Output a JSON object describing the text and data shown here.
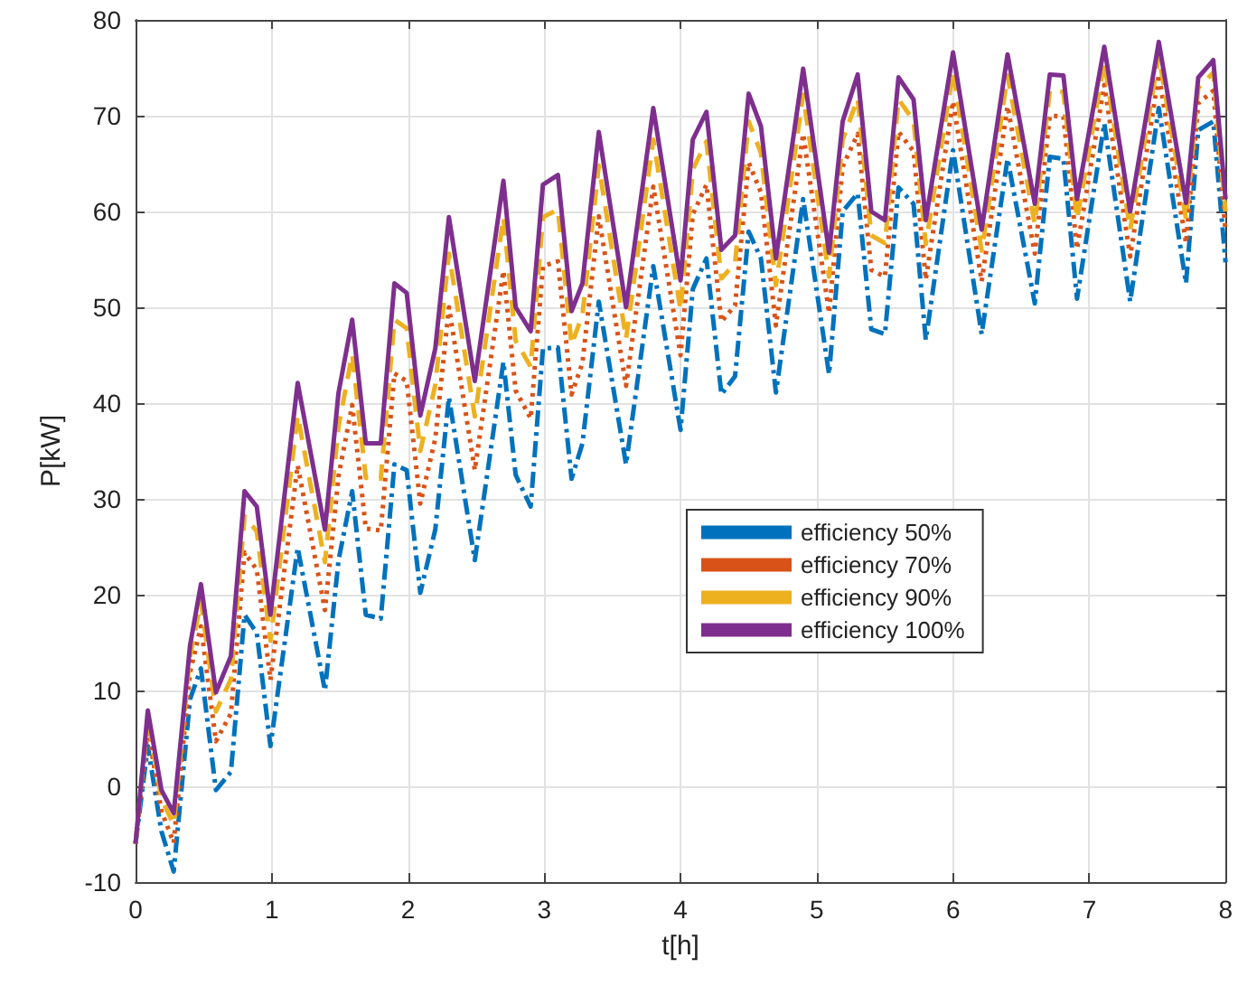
{
  "chart_data": {
    "type": "line",
    "xlabel": "t[h]",
    "ylabel": "P[kW]",
    "x": [
      0,
      0.09,
      0.19,
      0.28,
      0.4,
      0.48,
      0.59,
      0.7,
      0.8,
      0.89,
      0.99,
      1.19,
      1.39,
      1.49,
      1.59,
      1.69,
      1.8,
      1.9,
      1.99,
      2.09,
      2.2,
      2.3,
      2.49,
      2.7,
      2.79,
      2.9,
      2.99,
      3.1,
      3.2,
      3.28,
      3.4,
      3.6,
      3.8,
      4,
      4.09,
      4.19,
      4.3,
      4.4,
      4.5,
      4.59,
      4.7,
      4.9,
      5.09,
      5.19,
      5.3,
      5.4,
      5.5,
      5.6,
      5.71,
      5.8,
      6,
      6.21,
      6.4,
      6.6,
      6.71,
      6.81,
      6.91,
      7.11,
      7.3,
      7.51,
      7.71,
      7.8,
      7.91,
      8
    ],
    "series": [
      {
        "name": "efficiency 50%",
        "color": "#0072bd",
        "line_style": "dashdot",
        "values": [
          -6,
          4.2,
          -4.7,
          -8.9,
          9.1,
          12.3,
          -0.4,
          1.5,
          17.9,
          16,
          4.2,
          24.9,
          10,
          23.6,
          30.8,
          17.9,
          17.5,
          33.6,
          33,
          20.2,
          26.8,
          40.6,
          23.6,
          44.3,
          32.5,
          29.2,
          45.7,
          45.8,
          32.1,
          35.8,
          50.6,
          33.6,
          54.3,
          37.2,
          51.9,
          55.1,
          40.9,
          42.8,
          57.9,
          55.1,
          41.1,
          61.3,
          43,
          60,
          61.9,
          47.7,
          47.2,
          62.5,
          60.8,
          46.6,
          66.4,
          47.2,
          65.5,
          50.4,
          65.7,
          65.5,
          50.9,
          69.2,
          50.6,
          70.8,
          52.5,
          68.5,
          69.4,
          54.7
        ]
      },
      {
        "name": "efficiency 70%",
        "color": "#d95319",
        "line_style": "dotted",
        "values": [
          -6,
          6.1,
          -2.6,
          -5.9,
          11.9,
          16.7,
          4.7,
          7.6,
          24.4,
          22.6,
          11.1,
          33.5,
          18.4,
          32.4,
          39.8,
          26.9,
          26.7,
          43.1,
          42.3,
          29.5,
          36.3,
          50,
          33,
          53.8,
          41.3,
          38.4,
          54.3,
          54.8,
          40.9,
          44.2,
          59.5,
          41.8,
          62.6,
          45,
          59.7,
          62.8,
          48.5,
          50.2,
          65.1,
          62,
          48.1,
          68.1,
          49.4,
          64.7,
          68.1,
          53.9,
          53.2,
          68.3,
          66.3,
          52.9,
          71.5,
          52.7,
          71,
          55.6,
          70,
          69.9,
          56.1,
          73.2,
          55.3,
          74.3,
          56.7,
          71.3,
          72.6,
          58
        ]
      },
      {
        "name": "efficiency 90%",
        "color": "#edb120",
        "line_style": "dashed",
        "values": [
          -6,
          7.2,
          -1.3,
          -4,
          13.6,
          19.3,
          7.8,
          11.2,
          28.2,
          26.6,
          15.2,
          38.7,
          23.4,
          37.6,
          45.1,
          32.2,
          32.1,
          48.7,
          47.8,
          35,
          41.9,
          55.6,
          38.6,
          59.4,
          46.5,
          43.8,
          59.4,
          60.2,
          46.1,
          49.2,
          64.8,
          46.7,
          67.5,
          49.7,
          64.4,
          67.3,
          53,
          54.6,
          69.4,
          66.1,
          52.3,
          72.2,
          53.2,
          67.5,
          71.8,
          57.5,
          56.7,
          71.7,
          69.5,
          56.6,
          74.6,
          55.9,
          74.2,
          58.7,
          72.6,
          72.5,
          59.2,
          75.6,
          58.1,
          76.3,
          59.2,
          72.9,
          74.5,
          60
        ]
      },
      {
        "name": "efficiency 100%",
        "color": "#7e2f8e",
        "line_style": "solid",
        "values": [
          -6,
          7.9,
          -0.4,
          -2.8,
          14.7,
          21.1,
          9.8,
          13.6,
          30.8,
          29.2,
          17.9,
          42.1,
          26.8,
          41.1,
          48.7,
          35.8,
          35.8,
          52.5,
          51.5,
          38.7,
          45.7,
          59.4,
          42.3,
          63.2,
          50,
          47.5,
          62.8,
          63.8,
          49.6,
          52.5,
          68.3,
          50,
          70.8,
          52.8,
          67.5,
          70.4,
          56,
          57.5,
          72.3,
          68.9,
          55.1,
          74.9,
          55.7,
          69.4,
          74.3,
          60,
          59.1,
          74,
          71.7,
          59.1,
          76.6,
          58.1,
          76.4,
          60.8,
          74.3,
          74.2,
          61.3,
          77.2,
          60,
          77.7,
          60.9,
          74,
          75.8,
          61.3
        ]
      }
    ],
    "xlim": [
      0,
      8
    ],
    "xticks": [
      0,
      1,
      2,
      3,
      4,
      5,
      6,
      7,
      8
    ],
    "ylim": [
      -10,
      80
    ],
    "yticks": [
      -10,
      0,
      10,
      20,
      30,
      40,
      50,
      60,
      70,
      80
    ],
    "grid": true,
    "legend": "right",
    "marker": "none"
  }
}
